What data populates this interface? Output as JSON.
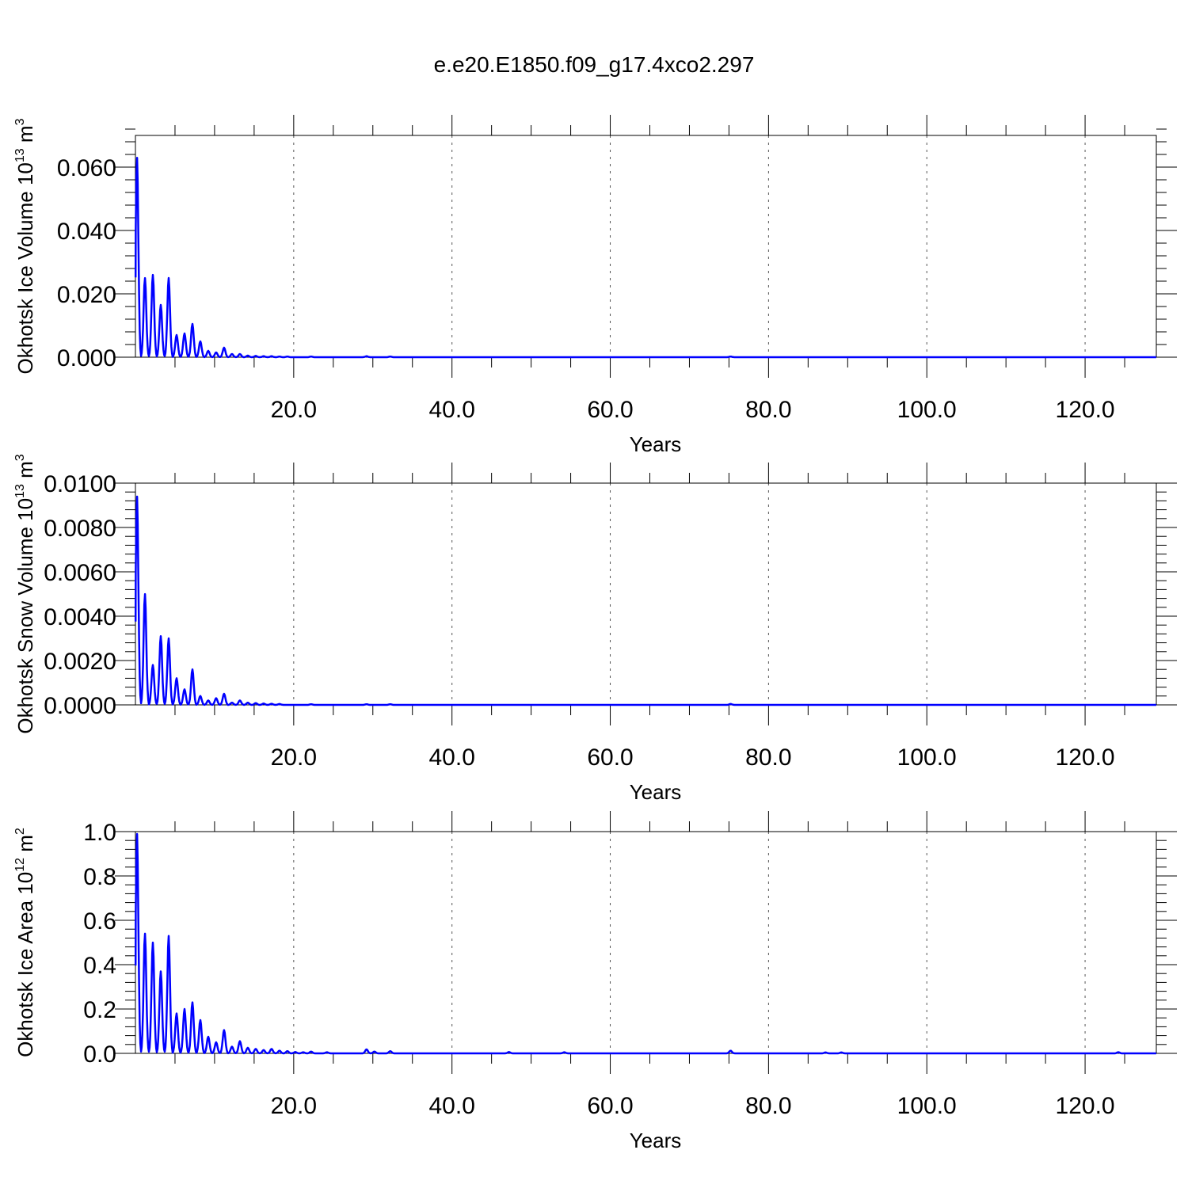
{
  "title": "e.e20.E1850.f09_g17.4xco2.297",
  "line_color": "#0000ff",
  "chart_data": [
    {
      "type": "line",
      "ylabel": "Okhotsk Ice Volume 10",
      "ylabel_exp": "13",
      "ylabel_unit": " m",
      "ylabel_unit_exp": "3",
      "xlabel": "Years",
      "xlim": [
        0,
        129
      ],
      "ylim": [
        0,
        0.07
      ],
      "x_ticks": [
        20,
        40,
        60,
        80,
        100,
        120
      ],
      "x_tick_labels": [
        "20.0",
        "40.0",
        "60.0",
        "80.0",
        "100.0",
        "120.0"
      ],
      "y_ticks": [
        0,
        0.02,
        0.04,
        0.06
      ],
      "y_tick_labels": [
        "0.000",
        "0.020",
        "0.040",
        "0.060"
      ],
      "grid_x": "dashed",
      "series": [
        {
          "x_start": 0.04,
          "x_step": 0.0833,
          "peaks": [
            [
              0.2,
              0.063
            ],
            [
              1.2,
              0.025
            ],
            [
              2.2,
              0.026
            ],
            [
              3.2,
              0.0165
            ],
            [
              4.2,
              0.025
            ],
            [
              5.2,
              0.007
            ],
            [
              6.2,
              0.0075
            ],
            [
              7.2,
              0.0105
            ],
            [
              8.2,
              0.005
            ],
            [
              9.2,
              0.002
            ],
            [
              10.2,
              0.0015
            ],
            [
              11.2,
              0.003
            ],
            [
              12.2,
              0.001
            ],
            [
              13.2,
              0.001
            ],
            [
              14.2,
              0.0005
            ],
            [
              15.2,
              0.0004
            ],
            [
              16.2,
              0.0003
            ],
            [
              17.2,
              0.0003
            ],
            [
              18.2,
              0.0002
            ],
            [
              19.2,
              0.0002
            ],
            [
              22.2,
              0.0002
            ],
            [
              29.2,
              0.0003
            ],
            [
              32.2,
              0.0002
            ],
            [
              75.2,
              0.0002
            ]
          ]
        }
      ]
    },
    {
      "type": "line",
      "ylabel": "Okhotsk Snow Volume 10",
      "ylabel_exp": "13",
      "ylabel_unit": " m",
      "ylabel_unit_exp": "3",
      "xlabel": "Years",
      "xlim": [
        0,
        129
      ],
      "ylim": [
        0,
        0.01
      ],
      "x_ticks": [
        20,
        40,
        60,
        80,
        100,
        120
      ],
      "x_tick_labels": [
        "20.0",
        "40.0",
        "60.0",
        "80.0",
        "100.0",
        "120.0"
      ],
      "y_ticks": [
        0,
        0.002,
        0.004,
        0.006,
        0.008,
        0.01
      ],
      "y_tick_labels": [
        "0.0000",
        "0.0020",
        "0.0040",
        "0.0060",
        "0.0080",
        "0.0100"
      ],
      "grid_x": "dashed",
      "series": [
        {
          "x_start": 0.04,
          "x_step": 0.0833,
          "peaks": [
            [
              0.2,
              0.0094
            ],
            [
              1.2,
              0.005
            ],
            [
              2.2,
              0.0018
            ],
            [
              3.2,
              0.0031
            ],
            [
              4.2,
              0.003
            ],
            [
              5.2,
              0.0012
            ],
            [
              6.2,
              0.0007
            ],
            [
              7.2,
              0.0016
            ],
            [
              8.2,
              0.0004
            ],
            [
              9.2,
              0.0002
            ],
            [
              10.2,
              0.0003
            ],
            [
              11.2,
              0.0005
            ],
            [
              12.2,
              0.0001
            ],
            [
              13.2,
              0.0002
            ],
            [
              14.2,
              0.0001
            ],
            [
              15.2,
              8e-05
            ],
            [
              16.2,
              6e-05
            ],
            [
              17.2,
              5e-05
            ],
            [
              18.2,
              4e-05
            ],
            [
              22.2,
              3e-05
            ],
            [
              29.2,
              3e-05
            ],
            [
              32.2,
              3e-05
            ],
            [
              75.2,
              4e-05
            ]
          ]
        }
      ]
    },
    {
      "type": "line",
      "ylabel": "Okhotsk Ice Area 10",
      "ylabel_exp": "12",
      "ylabel_unit": " m",
      "ylabel_unit_exp": "2",
      "xlabel": "Years",
      "xlim": [
        0,
        129
      ],
      "ylim": [
        0,
        1.0
      ],
      "x_ticks": [
        20,
        40,
        60,
        80,
        100,
        120
      ],
      "x_tick_labels": [
        "20.0",
        "40.0",
        "60.0",
        "80.0",
        "100.0",
        "120.0"
      ],
      "y_ticks": [
        0,
        0.2,
        0.4,
        0.6,
        0.8,
        1.0
      ],
      "y_tick_labels": [
        "0.0",
        "0.2",
        "0.4",
        "0.6",
        "0.8",
        "1.0"
      ],
      "grid_x": "dashed",
      "series": [
        {
          "x_start": 0.04,
          "x_step": 0.0833,
          "peaks": [
            [
              0.2,
              0.99
            ],
            [
              1.2,
              0.54
            ],
            [
              2.2,
              0.5
            ],
            [
              3.2,
              0.37
            ],
            [
              4.2,
              0.53
            ],
            [
              5.2,
              0.18
            ],
            [
              6.2,
              0.2
            ],
            [
              7.2,
              0.23
            ],
            [
              8.2,
              0.15
            ],
            [
              9.2,
              0.075
            ],
            [
              10.2,
              0.05
            ],
            [
              11.2,
              0.105
            ],
            [
              12.2,
              0.03
            ],
            [
              13.2,
              0.055
            ],
            [
              14.2,
              0.025
            ],
            [
              15.2,
              0.02
            ],
            [
              16.2,
              0.015
            ],
            [
              17.2,
              0.02
            ],
            [
              18.2,
              0.012
            ],
            [
              19.2,
              0.01
            ],
            [
              20.2,
              0.006
            ],
            [
              21.2,
              0.005
            ],
            [
              22.2,
              0.008
            ],
            [
              24.2,
              0.005
            ],
            [
              29.2,
              0.018
            ],
            [
              30.2,
              0.008
            ],
            [
              32.2,
              0.01
            ],
            [
              47.2,
              0.006
            ],
            [
              54.2,
              0.005
            ],
            [
              75.2,
              0.012
            ],
            [
              87.2,
              0.004
            ],
            [
              89.2,
              0.004
            ],
            [
              124.2,
              0.005
            ]
          ]
        }
      ]
    }
  ]
}
